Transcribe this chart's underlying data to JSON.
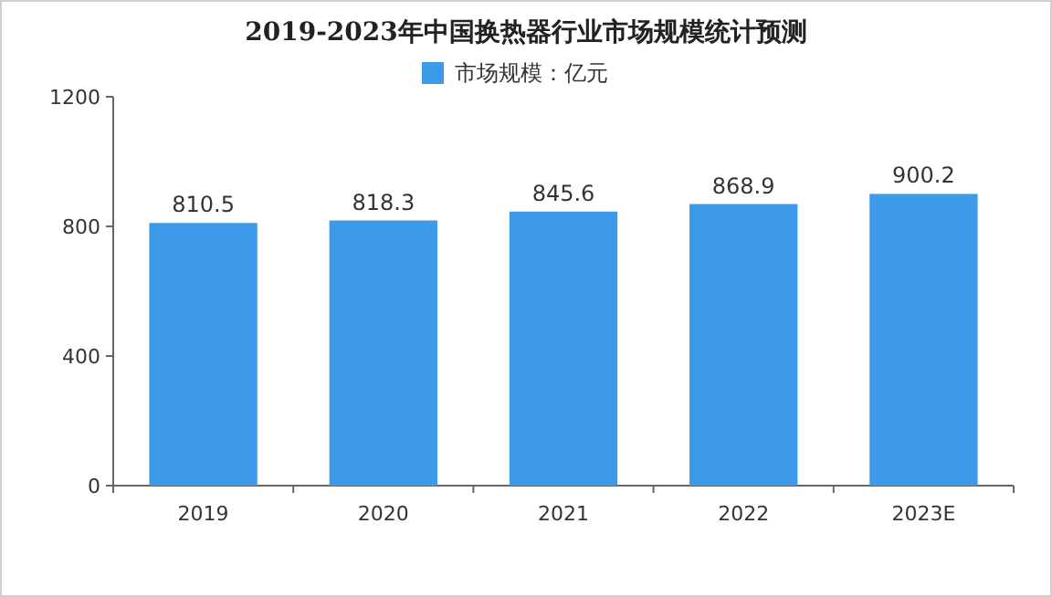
{
  "chart_data": {
    "type": "bar",
    "title": "2019-2023年中国换热器行业市场规模统计预测",
    "categories": [
      "2019",
      "2020",
      "2021",
      "2022",
      "2023E"
    ],
    "series": [
      {
        "name": "市场规模：亿元",
        "color": "#3d9ae8",
        "values": [
          810.5,
          818.3,
          845.6,
          868.9,
          900.2
        ]
      }
    ],
    "ylim": [
      0,
      1200
    ],
    "yticks": [
      0,
      400,
      800,
      1200
    ],
    "data_labels": true,
    "legend": "top",
    "grid": false
  }
}
